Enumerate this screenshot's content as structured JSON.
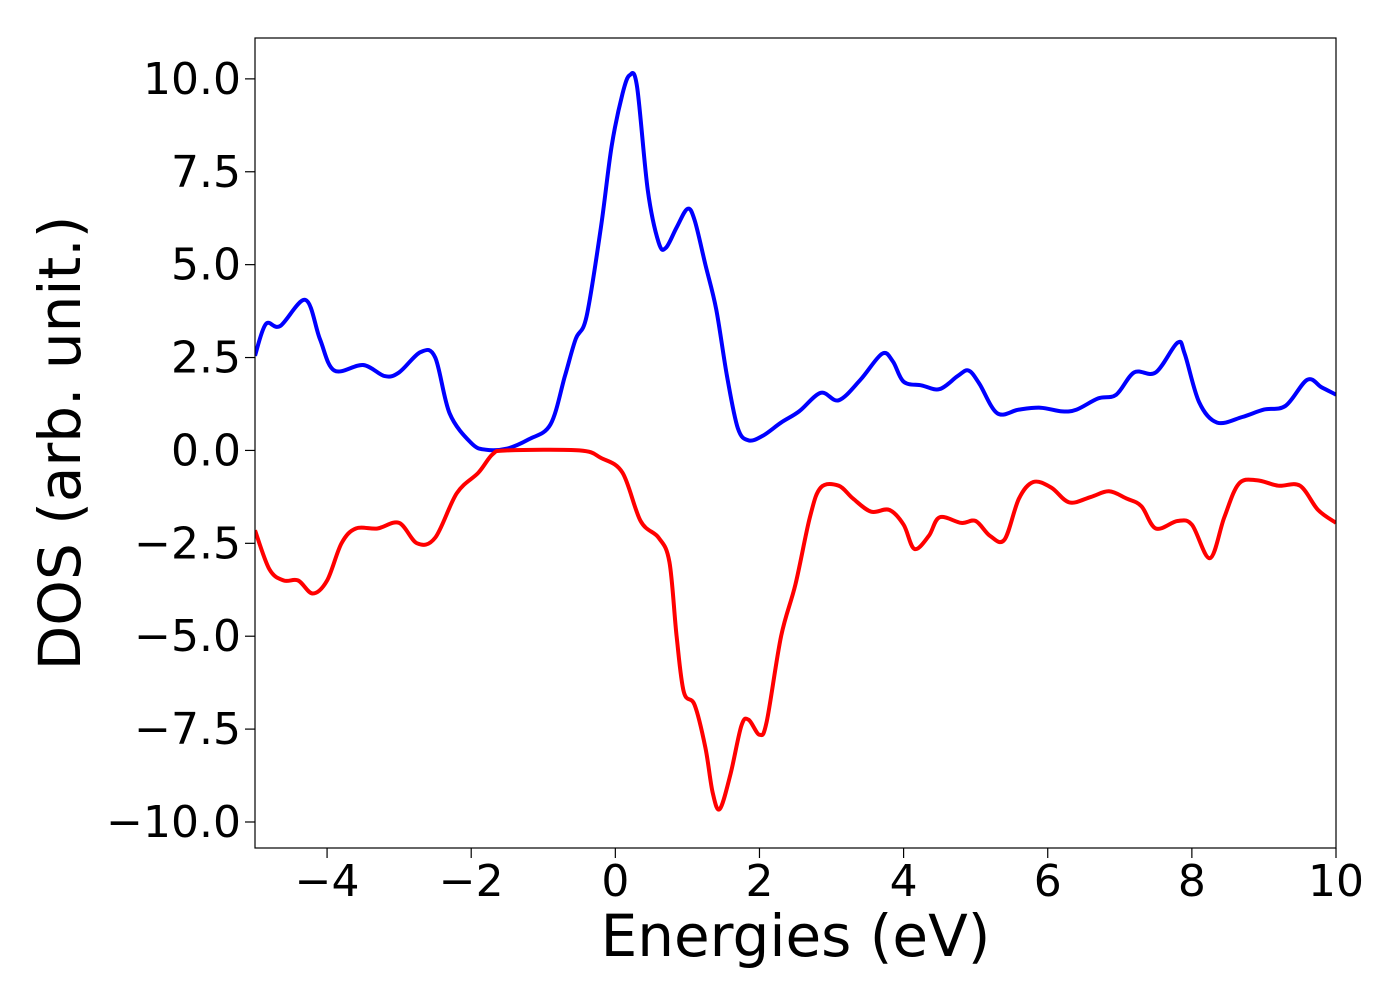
{
  "chart_data": {
    "type": "line",
    "title": "",
    "xlabel": "Energies (eV)",
    "ylabel": "DOS (arb. unit.)",
    "xlim": [
      -5,
      10
    ],
    "ylim": [
      -10.7,
      11.1
    ],
    "grid": false,
    "xticks": [
      -4,
      -2,
      0,
      2,
      4,
      6,
      8,
      10
    ],
    "xtick_labels": [
      "−4",
      "−2",
      "0",
      "2",
      "4",
      "6",
      "8",
      "10"
    ],
    "yticks": [
      10.0,
      7.5,
      5.0,
      2.5,
      0.0,
      -2.5,
      -5.0,
      -7.5,
      -10.0
    ],
    "ytick_labels": [
      "10.0",
      "7.5",
      "5.0",
      "2.5",
      "0.0",
      "−2.5",
      "−5.0",
      "−7.5",
      "−10.0"
    ],
    "series": [
      {
        "color": "#0000ff",
        "points": [
          [
            -5.0,
            2.55
          ],
          [
            -4.85,
            3.4
          ],
          [
            -4.65,
            3.35
          ],
          [
            -4.3,
            4.05
          ],
          [
            -4.1,
            3.0
          ],
          [
            -3.9,
            2.15
          ],
          [
            -3.5,
            2.3
          ],
          [
            -3.2,
            2.0
          ],
          [
            -3.0,
            2.1
          ],
          [
            -2.7,
            2.65
          ],
          [
            -2.5,
            2.5
          ],
          [
            -2.3,
            1.0
          ],
          [
            -2.0,
            0.2
          ],
          [
            -1.8,
            0.02
          ],
          [
            -1.5,
            0.05
          ],
          [
            -1.2,
            0.3
          ],
          [
            -0.9,
            0.7
          ],
          [
            -0.7,
            2.0
          ],
          [
            -0.55,
            3.0
          ],
          [
            -0.4,
            3.6
          ],
          [
            -0.2,
            6.0
          ],
          [
            -0.05,
            8.2
          ],
          [
            0.1,
            9.6
          ],
          [
            0.2,
            10.1
          ],
          [
            0.3,
            9.8
          ],
          [
            0.45,
            7.0
          ],
          [
            0.6,
            5.6
          ],
          [
            0.7,
            5.45
          ],
          [
            0.85,
            6.0
          ],
          [
            1.0,
            6.5
          ],
          [
            1.1,
            6.2
          ],
          [
            1.25,
            5.0
          ],
          [
            1.4,
            3.8
          ],
          [
            1.55,
            2.0
          ],
          [
            1.7,
            0.6
          ],
          [
            1.85,
            0.27
          ],
          [
            2.05,
            0.4
          ],
          [
            2.3,
            0.75
          ],
          [
            2.55,
            1.05
          ],
          [
            2.85,
            1.55
          ],
          [
            3.1,
            1.35
          ],
          [
            3.4,
            1.9
          ],
          [
            3.7,
            2.6
          ],
          [
            3.85,
            2.4
          ],
          [
            4.0,
            1.85
          ],
          [
            4.25,
            1.75
          ],
          [
            4.5,
            1.65
          ],
          [
            4.75,
            2.0
          ],
          [
            4.9,
            2.15
          ],
          [
            5.05,
            1.8
          ],
          [
            5.3,
            1.0
          ],
          [
            5.6,
            1.1
          ],
          [
            5.9,
            1.15
          ],
          [
            6.2,
            1.05
          ],
          [
            6.4,
            1.1
          ],
          [
            6.7,
            1.4
          ],
          [
            6.95,
            1.5
          ],
          [
            7.2,
            2.1
          ],
          [
            7.5,
            2.1
          ],
          [
            7.8,
            2.9
          ],
          [
            7.9,
            2.6
          ],
          [
            8.1,
            1.3
          ],
          [
            8.35,
            0.75
          ],
          [
            8.7,
            0.9
          ],
          [
            9.0,
            1.1
          ],
          [
            9.3,
            1.2
          ],
          [
            9.6,
            1.9
          ],
          [
            9.8,
            1.7
          ],
          [
            10.0,
            1.5
          ]
        ]
      },
      {
        "color": "#ff0000",
        "points": [
          [
            -5.0,
            -2.15
          ],
          [
            -4.8,
            -3.2
          ],
          [
            -4.6,
            -3.5
          ],
          [
            -4.4,
            -3.5
          ],
          [
            -4.2,
            -3.85
          ],
          [
            -4.0,
            -3.5
          ],
          [
            -3.8,
            -2.5
          ],
          [
            -3.6,
            -2.1
          ],
          [
            -3.3,
            -2.1
          ],
          [
            -3.0,
            -1.95
          ],
          [
            -2.75,
            -2.5
          ],
          [
            -2.5,
            -2.35
          ],
          [
            -2.2,
            -1.15
          ],
          [
            -1.9,
            -0.6
          ],
          [
            -1.7,
            -0.1
          ],
          [
            -1.5,
            0.0
          ],
          [
            -0.5,
            0.0
          ],
          [
            -0.2,
            -0.2
          ],
          [
            0.1,
            -0.6
          ],
          [
            0.35,
            -1.9
          ],
          [
            0.6,
            -2.35
          ],
          [
            0.75,
            -3.0
          ],
          [
            0.85,
            -5.0
          ],
          [
            0.95,
            -6.5
          ],
          [
            1.1,
            -6.85
          ],
          [
            1.25,
            -8.0
          ],
          [
            1.35,
            -9.2
          ],
          [
            1.45,
            -9.65
          ],
          [
            1.6,
            -8.7
          ],
          [
            1.75,
            -7.4
          ],
          [
            1.85,
            -7.25
          ],
          [
            2.0,
            -7.65
          ],
          [
            2.1,
            -7.3
          ],
          [
            2.3,
            -5.0
          ],
          [
            2.5,
            -3.6
          ],
          [
            2.7,
            -1.8
          ],
          [
            2.85,
            -1.0
          ],
          [
            3.1,
            -0.95
          ],
          [
            3.3,
            -1.3
          ],
          [
            3.55,
            -1.65
          ],
          [
            3.8,
            -1.6
          ],
          [
            4.0,
            -2.0
          ],
          [
            4.15,
            -2.65
          ],
          [
            4.35,
            -2.3
          ],
          [
            4.5,
            -1.8
          ],
          [
            4.8,
            -1.95
          ],
          [
            5.0,
            -1.9
          ],
          [
            5.2,
            -2.3
          ],
          [
            5.4,
            -2.4
          ],
          [
            5.6,
            -1.3
          ],
          [
            5.8,
            -0.85
          ],
          [
            6.05,
            -1.0
          ],
          [
            6.3,
            -1.4
          ],
          [
            6.6,
            -1.25
          ],
          [
            6.85,
            -1.1
          ],
          [
            7.1,
            -1.3
          ],
          [
            7.3,
            -1.5
          ],
          [
            7.5,
            -2.1
          ],
          [
            7.8,
            -1.9
          ],
          [
            8.0,
            -2.0
          ],
          [
            8.25,
            -2.9
          ],
          [
            8.45,
            -1.8
          ],
          [
            8.65,
            -0.9
          ],
          [
            8.9,
            -0.8
          ],
          [
            9.2,
            -0.95
          ],
          [
            9.5,
            -0.95
          ],
          [
            9.75,
            -1.6
          ],
          [
            10.0,
            -1.95
          ]
        ]
      }
    ]
  }
}
